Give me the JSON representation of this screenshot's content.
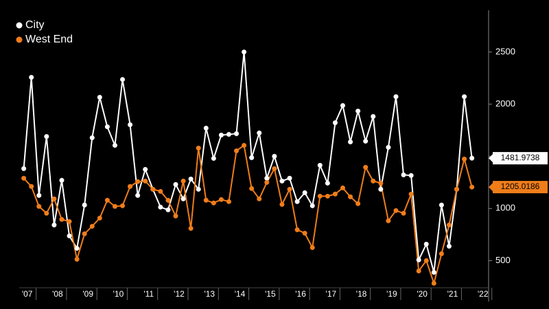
{
  "chart_data": {
    "type": "line",
    "x": [
      2007,
      2007.25,
      2007.5,
      2007.75,
      2008,
      2008.25,
      2008.5,
      2008.75,
      2009,
      2009.25,
      2009.5,
      2009.75,
      2010,
      2010.25,
      2010.5,
      2010.75,
      2011,
      2011.25,
      2011.5,
      2011.75,
      2012,
      2012.25,
      2012.5,
      2012.75,
      2013,
      2013.25,
      2013.5,
      2013.75,
      2014,
      2014.25,
      2014.5,
      2014.75,
      2015,
      2015.25,
      2015.5,
      2015.75,
      2016,
      2016.25,
      2016.5,
      2016.75,
      2017,
      2017.25,
      2017.5,
      2017.75,
      2018,
      2018.25,
      2018.5,
      2018.75,
      2019,
      2019.25,
      2019.5,
      2019.75,
      2020,
      2020.25,
      2020.5,
      2020.75,
      2021,
      2021.25,
      2021.5,
      2021.75
    ],
    "series": [
      {
        "name": "City",
        "color": "#ffffff",
        "values": [
          1382,
          2257,
          1125,
          1690,
          842,
          1270,
          737,
          618,
          1033,
          1678,
          2066,
          1783,
          1605,
          2237,
          1803,
          1125,
          1375,
          1184,
          1013,
          987,
          1230,
          1092,
          1283,
          1184,
          1770,
          1480,
          1704,
          1710,
          1717,
          2500,
          1487,
          1724,
          1290,
          1500,
          1263,
          1290,
          1066,
          1151,
          1026,
          1414,
          1243,
          1822,
          1987,
          1638,
          1934,
          1645,
          1882,
          1184,
          1586,
          2072,
          1322,
          1316,
          507,
          658,
          388,
          1033,
          638,
          1184,
          2072,
          1481.9738
        ],
        "value_labels": [
          null,
          null,
          null,
          null,
          null,
          null,
          null,
          null,
          null,
          null,
          null,
          null,
          null,
          null,
          null,
          null,
          null,
          null,
          null,
          null,
          null,
          null,
          null,
          null,
          null,
          null,
          null,
          null,
          null,
          null,
          null,
          null,
          null,
          null,
          null,
          null,
          null,
          null,
          null,
          null,
          null,
          null,
          null,
          null,
          null,
          null,
          null,
          null,
          null,
          null,
          null,
          null,
          null,
          null,
          null,
          null,
          null,
          null,
          null,
          "1481.9738"
        ]
      },
      {
        "name": "West End",
        "color": "#f07d1a",
        "values": [
          1290,
          1211,
          1020,
          954,
          1092,
          895,
          875,
          513,
          757,
          829,
          908,
          1079,
          1020,
          1026,
          1211,
          1257,
          1263,
          1184,
          1164,
          1079,
          928,
          1263,
          809,
          1579,
          1079,
          1053,
          1086,
          1066,
          1553,
          1605,
          1191,
          1092,
          1250,
          1382,
          1039,
          1184,
          796,
          763,
          625,
          1118,
          1118,
          1138,
          1197,
          1112,
          1046,
          1395,
          1263,
          1243,
          882,
          980,
          954,
          1138,
          401,
          500,
          283,
          566,
          842,
          1184,
          1474,
          1205.0186
        ],
        "value_labels": [
          null,
          null,
          null,
          null,
          null,
          null,
          null,
          null,
          null,
          null,
          null,
          null,
          null,
          null,
          null,
          null,
          null,
          null,
          null,
          null,
          null,
          null,
          null,
          null,
          null,
          null,
          null,
          null,
          null,
          null,
          null,
          null,
          null,
          null,
          null,
          null,
          null,
          null,
          null,
          null,
          null,
          null,
          null,
          null,
          null,
          null,
          null,
          null,
          null,
          null,
          null,
          null,
          null,
          null,
          null,
          null,
          null,
          null,
          null,
          "1205.0186"
        ]
      }
    ],
    "xlim": [
      2006.85,
      2022.3
    ],
    "xticks": [
      {
        "value": 2007,
        "label": "'07"
      },
      {
        "value": 2008,
        "label": "'08"
      },
      {
        "value": 2009,
        "label": "'09"
      },
      {
        "value": 2010,
        "label": "'10"
      },
      {
        "value": 2011,
        "label": "'11"
      },
      {
        "value": 2012,
        "label": "'12"
      },
      {
        "value": 2013,
        "label": "'13"
      },
      {
        "value": 2014,
        "label": "'14"
      },
      {
        "value": 2015,
        "label": "'15"
      },
      {
        "value": 2016,
        "label": "'16"
      },
      {
        "value": 2017,
        "label": "'17"
      },
      {
        "value": 2018,
        "label": "'18"
      },
      {
        "value": 2019,
        "label": "'19"
      },
      {
        "value": 2020,
        "label": "'20"
      },
      {
        "value": 2021,
        "label": "'21"
      },
      {
        "value": 2022,
        "label": "'22"
      }
    ],
    "ylim": [
      240,
      2900
    ],
    "yticks": [
      500,
      1000,
      1500,
      2000,
      2500
    ],
    "legend": "top-left"
  }
}
